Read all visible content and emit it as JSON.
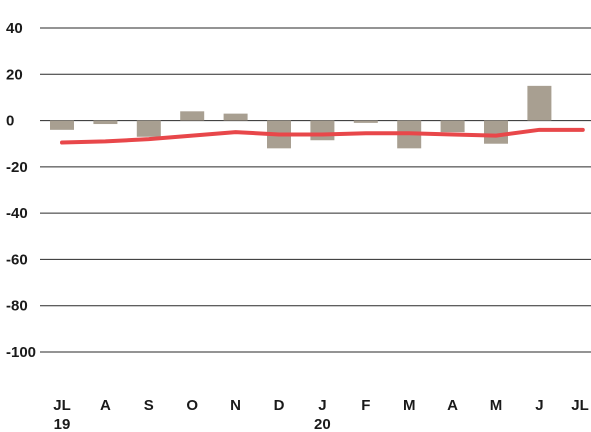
{
  "chart_data": {
    "type": "bar",
    "categories": [
      "JL",
      "A",
      "S",
      "O",
      "N",
      "D",
      "J",
      "F",
      "M",
      "A",
      "M",
      "J",
      "JL"
    ],
    "year_labels": [
      "19",
      "",
      "",
      "",
      "",
      "",
      "20",
      "",
      "",
      "",
      "",
      "",
      ""
    ],
    "series": [
      {
        "type": "bar",
        "values": [
          -4,
          -1.5,
          -7,
          4,
          3,
          -12,
          -8.5,
          -1,
          -12,
          -5,
          -10,
          15,
          null
        ],
        "color": "#a89f91"
      },
      {
        "type": "line",
        "values": [
          -9.5,
          -9,
          -8,
          -6.5,
          -5,
          -6,
          -6,
          -5.5,
          -5.5,
          -6,
          -6.5,
          -4,
          -4
        ],
        "color": "#e8474a"
      }
    ],
    "yticks": [
      40,
      20,
      0,
      -20,
      -40,
      -60,
      -80,
      -100
    ],
    "ylim": [
      -100,
      40
    ],
    "grid": true,
    "xlabel": "",
    "ylabel": "",
    "title": ""
  }
}
